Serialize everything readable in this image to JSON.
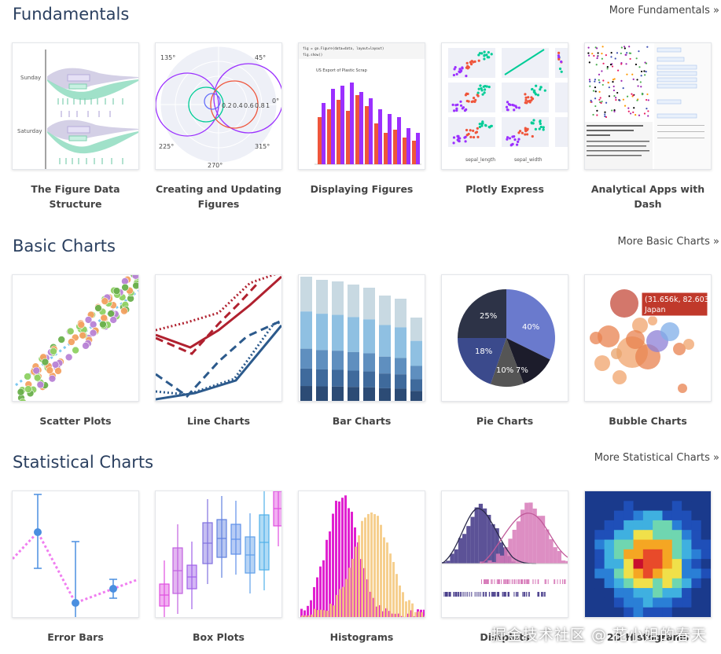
{
  "sections": [
    {
      "title": "Fundamentals",
      "more_link": "More Fundamentals »",
      "cards": [
        {
          "label": "The Figure Data Structure",
          "thumb_text": [
            "Sunday",
            "Saturday"
          ]
        },
        {
          "label": "Creating and Updating Figures",
          "thumb_text": [
            "135°",
            "45°",
            "0.2",
            "0.4",
            "0.6",
            "0.8",
            "1",
            "0°",
            "225°",
            "315°",
            "270°"
          ]
        },
        {
          "label": "Displaying Figures",
          "thumb_text": [
            "fig = go.Figure(data=data, layout=layout)",
            "fig.show()",
            "US Export of Plastic Scrap"
          ]
        },
        {
          "label": "Plotly Express",
          "thumb_text": [
            "sepal_length",
            "sepal_width"
          ]
        },
        {
          "label": "Analytical Apps with Dash",
          "thumb_text": []
        }
      ]
    },
    {
      "title": "Basic Charts",
      "more_link": "More Basic Charts »",
      "cards": [
        {
          "label": "Scatter Plots"
        },
        {
          "label": "Line Charts"
        },
        {
          "label": "Bar Charts"
        },
        {
          "label": "Pie Charts",
          "pie_labels": [
            "25%",
            "40%",
            "18%",
            "10%",
            "7%"
          ]
        },
        {
          "label": "Bubble Charts",
          "tooltip": [
            "(31.656k, 82.603)",
            "Japan"
          ]
        }
      ]
    },
    {
      "title": "Statistical Charts",
      "more_link": "More Statistical Charts »",
      "cards": [
        {
          "label": "Error Bars"
        },
        {
          "label": "Box Plots"
        },
        {
          "label": "Histograms"
        },
        {
          "label": "Distplots"
        },
        {
          "label": "2D Histograms"
        }
      ]
    }
  ],
  "watermark": "掘金技术社区 @ 花小姐的春天",
  "colors": {
    "title": "#2a3f5f",
    "plotly_purple": "#9b30ff",
    "plotly_red": "#ef553b",
    "plotly_green": "#00cc96",
    "plotly_blue": "#636efa"
  }
}
